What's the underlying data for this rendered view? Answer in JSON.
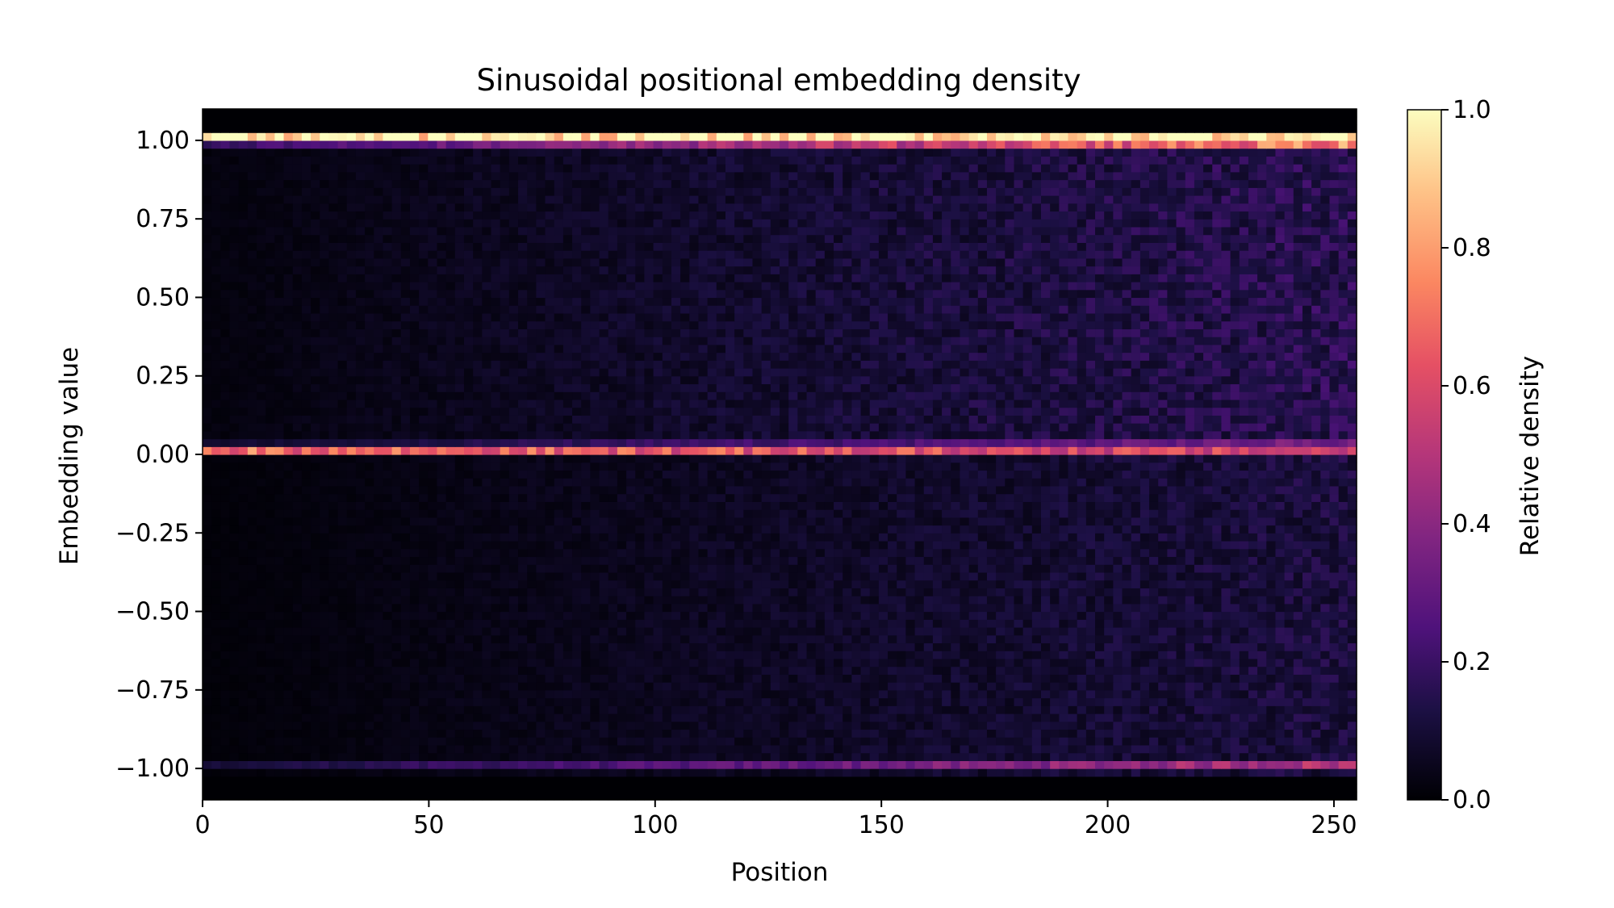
{
  "chart_data": {
    "type": "heatmap",
    "title": "Sinusoidal positional embedding density",
    "xlabel": "Position",
    "ylabel": "Embedding value",
    "xlim": [
      0,
      255
    ],
    "ylim": [
      -1.1,
      1.1
    ],
    "x_ticks": [
      {
        "value": 0,
        "label": "0"
      },
      {
        "value": 50,
        "label": "50"
      },
      {
        "value": 100,
        "label": "100"
      },
      {
        "value": 150,
        "label": "150"
      },
      {
        "value": 200,
        "label": "200"
      },
      {
        "value": 250,
        "label": "250"
      }
    ],
    "y_ticks": [
      {
        "value": 1.0,
        "label": "1.00"
      },
      {
        "value": 0.75,
        "label": "0.75"
      },
      {
        "value": 0.5,
        "label": "0.50"
      },
      {
        "value": 0.25,
        "label": "0.25"
      },
      {
        "value": 0.0,
        "label": "0.00"
      },
      {
        "value": -0.25,
        "label": "−0.25"
      },
      {
        "value": -0.5,
        "label": "−0.50"
      },
      {
        "value": -0.75,
        "label": "−0.75"
      },
      {
        "value": -1.0,
        "label": "−1.00"
      }
    ],
    "colorbar": {
      "label": "Relative density",
      "range": [
        0,
        1
      ],
      "colormap": "magma",
      "ticks": [
        {
          "value": 0.0,
          "label": "0.0"
        },
        {
          "value": 0.2,
          "label": "0.2"
        },
        {
          "value": 0.4,
          "label": "0.4"
        },
        {
          "value": 0.6,
          "label": "0.6"
        },
        {
          "value": 0.8,
          "label": "0.8"
        },
        {
          "value": 1.0,
          "label": "1.0"
        }
      ]
    },
    "density_profile": {
      "description_of_bands": "y_center in embedding units, density 0..1 as function of position",
      "bands": [
        {
          "y_center": 1.01,
          "density_at_start": 1.0,
          "density_at_end": 1.0
        },
        {
          "y_center": 0.985,
          "density_at_start": 0.2,
          "density_at_end": 0.75
        },
        {
          "y_center": 0.01,
          "density_at_start": 0.7,
          "density_at_end": 0.55
        },
        {
          "y_center": 0.04,
          "density_at_start": 0.08,
          "density_at_end": 0.35
        },
        {
          "y_center": -0.99,
          "density_at_start": 0.1,
          "density_at_end": 0.5
        }
      ],
      "background_upper_half": {
        "density_at_start": 0.02,
        "density_at_end": 0.16
      },
      "background_lower_half": {
        "density_at_start": 0.01,
        "density_at_end": 0.12
      }
    }
  }
}
